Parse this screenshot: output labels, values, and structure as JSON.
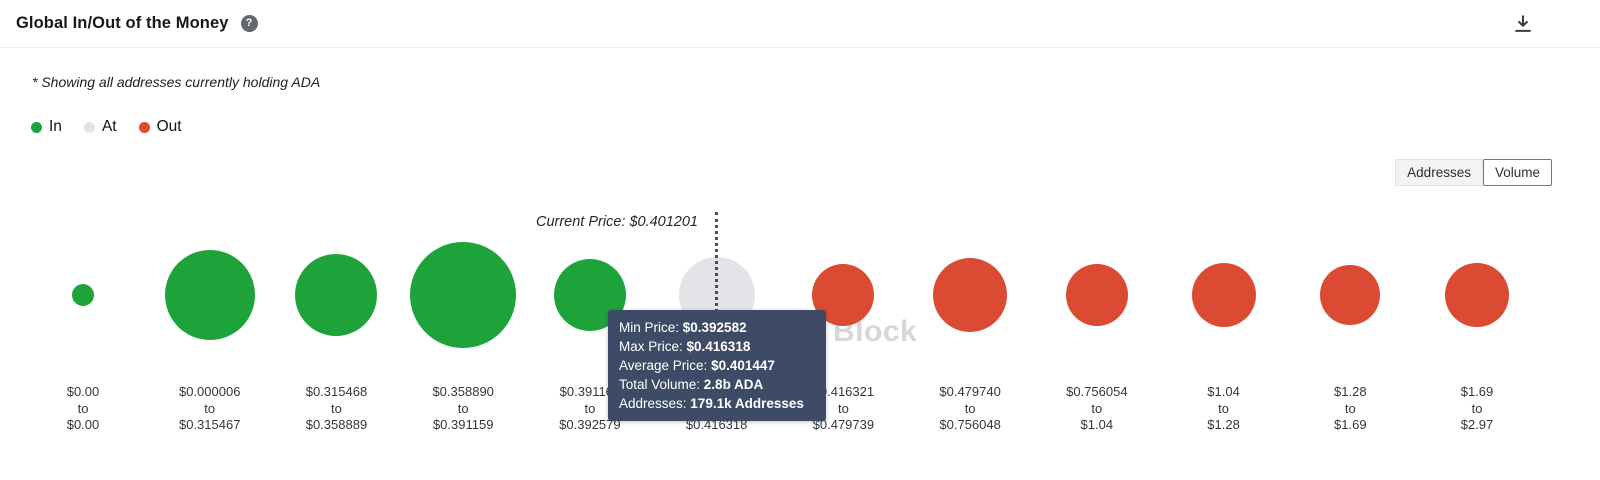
{
  "header": {
    "title": "Global In/Out of the Money",
    "help_icon": "?"
  },
  "subtitle": "* Showing all addresses currently holding ADA",
  "legend": [
    {
      "label": "In",
      "color": "#1ea33b"
    },
    {
      "label": "At",
      "color": "#e2e4e7"
    },
    {
      "label": "Out",
      "color": "#db4a32"
    }
  ],
  "view_toggle": {
    "options": [
      "Addresses",
      "Volume"
    ],
    "selected": "Volume"
  },
  "current_price_label": "Current Price: $0.401201",
  "tooltip": {
    "rows": [
      {
        "label": "Min Price:",
        "value": "$0.392582"
      },
      {
        "label": "Max Price:",
        "value": "$0.416318"
      },
      {
        "label": "Average Price:",
        "value": "$0.401447"
      },
      {
        "label": "Total Volume:",
        "value": "2.8b ADA"
      },
      {
        "label": "Addresses:",
        "value": "179.1k Addresses"
      }
    ]
  },
  "watermark": "Block",
  "chart_data": {
    "type": "bubble",
    "title": "Global In/Out of the Money",
    "asset": "ADA",
    "current_price": 0.401201,
    "selected_bucket_index": 5,
    "legend_position": "top-left",
    "colors": {
      "in": "#1ea33b",
      "at": "#e2e4e7",
      "out": "#db4a32"
    },
    "buckets": [
      {
        "range": [
          "$0.00",
          "$0.00"
        ],
        "status": "in",
        "radius": 11
      },
      {
        "range": [
          "$0.000006",
          "$0.315467"
        ],
        "status": "in",
        "radius": 45
      },
      {
        "range": [
          "$0.315468",
          "$0.358889"
        ],
        "status": "in",
        "radius": 41
      },
      {
        "range": [
          "$0.358890",
          "$0.391159"
        ],
        "status": "in",
        "radius": 53
      },
      {
        "range": [
          "$0.391160",
          "$0.392579"
        ],
        "status": "in",
        "radius": 36
      },
      {
        "range": [
          "$0.392582",
          "$0.416318"
        ],
        "status": "at",
        "radius": 38
      },
      {
        "range": [
          "$0.416321",
          "$0.479739"
        ],
        "status": "out",
        "radius": 31
      },
      {
        "range": [
          "$0.479740",
          "$0.756048"
        ],
        "status": "out",
        "radius": 37
      },
      {
        "range": [
          "$0.756054",
          "$1.04"
        ],
        "status": "out",
        "radius": 31
      },
      {
        "range": [
          "$1.04",
          "$1.28"
        ],
        "status": "out",
        "radius": 32
      },
      {
        "range": [
          "$1.28",
          "$1.69"
        ],
        "status": "out",
        "radius": 30
      },
      {
        "range": [
          "$1.69",
          "$2.97"
        ],
        "status": "out",
        "radius": 32
      }
    ]
  }
}
